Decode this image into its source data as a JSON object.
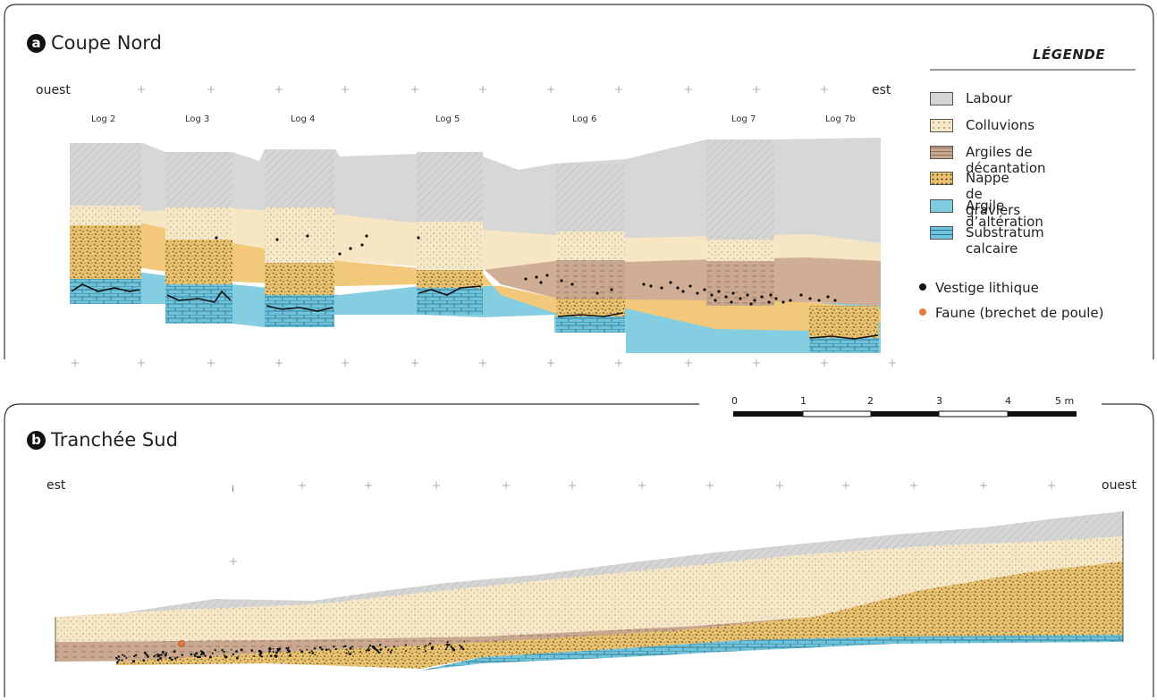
{
  "panel_a": {
    "badge": "a",
    "title": "Coupe Nord",
    "left_label": "ouest",
    "right_label": "est",
    "logs": [
      "Log 2",
      "Log 3",
      "Log 4",
      "Log 5",
      "Log 6",
      "Log 7",
      "Log 7b"
    ]
  },
  "panel_b": {
    "badge": "b",
    "title": "Tranchée Sud",
    "left_label": "est",
    "right_label": "ouest",
    "marker": "I"
  },
  "legend": {
    "title": "LÉGENDE",
    "items": [
      {
        "label": "Labour",
        "color": "#d4d5d4",
        "icon": "plain"
      },
      {
        "label": "Colluvions",
        "color": "#f6e7c6",
        "icon": "fine-dots"
      },
      {
        "label": "Argiles de décantation",
        "color": "#c9a88f",
        "icon": "dashes"
      },
      {
        "label": "Nappe de graviers",
        "color": "#e8c26f",
        "icon": "gravel"
      },
      {
        "label": "Argile d’altération",
        "color": "#7fcbe0",
        "icon": "plain"
      },
      {
        "label": "Substratum calcaire",
        "color": "#6ec3dd",
        "icon": "bricks"
      }
    ],
    "points": [
      {
        "label": "Vestige lithique",
        "color": "#111111"
      },
      {
        "label": "Faune (brechet de poule)",
        "color": "#e07b39"
      }
    ]
  },
  "scale": {
    "labels": [
      "0",
      "1",
      "2",
      "3",
      "4",
      "5 m"
    ]
  }
}
